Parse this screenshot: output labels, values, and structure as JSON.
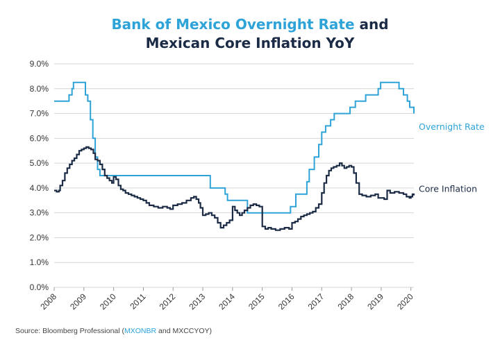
{
  "title": {
    "part_blue": "Bank of Mexico Overnight Rate",
    "part_dark_1": " and",
    "line2": "Mexican Core Inflation YoY"
  },
  "source": {
    "prefix": "Source: Bloomberg Professional (",
    "link": "MXONBR",
    "suffix": " and MXCCYOY)"
  },
  "colors": {
    "overnight": "#2ea3d8",
    "core": "#1b2b45",
    "grid": "#d6d6d6"
  },
  "chart_data": {
    "type": "line",
    "title": "Bank of Mexico Overnight Rate and Mexican Core Inflation YoY",
    "xlabel": "",
    "ylabel": "",
    "xlim": [
      2008,
      2020.1
    ],
    "ylim": [
      0,
      9
    ],
    "x_ticks": [
      "2008",
      "2009",
      "2010",
      "2011",
      "2012",
      "2013",
      "2014",
      "2015",
      "2016",
      "2017",
      "2018",
      "2019",
      "2020"
    ],
    "y_ticks": [
      "0.0%",
      "1.0%",
      "2.0%",
      "3.0%",
      "4.0%",
      "5.0%",
      "6.0%",
      "7.0%",
      "8.0%",
      "9.0%"
    ],
    "grid": true,
    "legend": "inline labels at right end of lines",
    "series": [
      {
        "name": "Overnight Rate",
        "step": true,
        "points": [
          [
            2008.0,
            7.5
          ],
          [
            2008.5,
            7.75
          ],
          [
            2008.6,
            8.0
          ],
          [
            2008.65,
            8.25
          ],
          [
            2009.05,
            7.75
          ],
          [
            2009.13,
            7.5
          ],
          [
            2009.22,
            6.75
          ],
          [
            2009.3,
            6.0
          ],
          [
            2009.38,
            5.25
          ],
          [
            2009.46,
            4.75
          ],
          [
            2009.54,
            4.5
          ],
          [
            2013.25,
            4.0
          ],
          [
            2013.75,
            3.75
          ],
          [
            2013.83,
            3.5
          ],
          [
            2014.5,
            3.0
          ],
          [
            2015.95,
            3.25
          ],
          [
            2016.13,
            3.75
          ],
          [
            2016.5,
            4.25
          ],
          [
            2016.58,
            4.75
          ],
          [
            2016.75,
            5.25
          ],
          [
            2016.9,
            5.75
          ],
          [
            2017.0,
            6.25
          ],
          [
            2017.13,
            6.5
          ],
          [
            2017.3,
            6.75
          ],
          [
            2017.42,
            7.0
          ],
          [
            2017.95,
            7.25
          ],
          [
            2018.13,
            7.5
          ],
          [
            2018.48,
            7.75
          ],
          [
            2018.9,
            8.0
          ],
          [
            2018.98,
            8.25
          ],
          [
            2019.6,
            8.0
          ],
          [
            2019.75,
            7.75
          ],
          [
            2019.88,
            7.5
          ],
          [
            2019.96,
            7.25
          ],
          [
            2020.1,
            7.0
          ]
        ]
      },
      {
        "name": "Core Inflation",
        "step": true,
        "points": [
          [
            2008.0,
            3.9
          ],
          [
            2008.08,
            3.85
          ],
          [
            2008.16,
            3.9
          ],
          [
            2008.2,
            4.1
          ],
          [
            2008.28,
            4.3
          ],
          [
            2008.36,
            4.6
          ],
          [
            2008.44,
            4.8
          ],
          [
            2008.52,
            4.95
          ],
          [
            2008.6,
            5.1
          ],
          [
            2008.68,
            5.2
          ],
          [
            2008.76,
            5.35
          ],
          [
            2008.84,
            5.5
          ],
          [
            2008.92,
            5.55
          ],
          [
            2009.0,
            5.6
          ],
          [
            2009.08,
            5.65
          ],
          [
            2009.16,
            5.6
          ],
          [
            2009.24,
            5.55
          ],
          [
            2009.32,
            5.4
          ],
          [
            2009.38,
            5.15
          ],
          [
            2009.46,
            5.1
          ],
          [
            2009.54,
            4.95
          ],
          [
            2009.62,
            4.75
          ],
          [
            2009.7,
            4.5
          ],
          [
            2009.78,
            4.4
          ],
          [
            2009.86,
            4.3
          ],
          [
            2009.94,
            4.2
          ],
          [
            2010.0,
            4.45
          ],
          [
            2010.08,
            4.35
          ],
          [
            2010.16,
            4.1
          ],
          [
            2010.24,
            3.95
          ],
          [
            2010.32,
            3.9
          ],
          [
            2010.4,
            3.8
          ],
          [
            2010.5,
            3.75
          ],
          [
            2010.6,
            3.7
          ],
          [
            2010.7,
            3.65
          ],
          [
            2010.8,
            3.6
          ],
          [
            2010.9,
            3.55
          ],
          [
            2011.0,
            3.5
          ],
          [
            2011.1,
            3.4
          ],
          [
            2011.2,
            3.3
          ],
          [
            2011.35,
            3.25
          ],
          [
            2011.5,
            3.2
          ],
          [
            2011.65,
            3.25
          ],
          [
            2011.8,
            3.2
          ],
          [
            2011.9,
            3.15
          ],
          [
            2012.0,
            3.3
          ],
          [
            2012.15,
            3.35
          ],
          [
            2012.3,
            3.4
          ],
          [
            2012.45,
            3.5
          ],
          [
            2012.6,
            3.6
          ],
          [
            2012.7,
            3.65
          ],
          [
            2012.78,
            3.55
          ],
          [
            2012.86,
            3.4
          ],
          [
            2012.92,
            3.2
          ],
          [
            2013.0,
            2.9
          ],
          [
            2013.1,
            2.95
          ],
          [
            2013.2,
            3.0
          ],
          [
            2013.3,
            2.9
          ],
          [
            2013.4,
            2.8
          ],
          [
            2013.5,
            2.6
          ],
          [
            2013.6,
            2.4
          ],
          [
            2013.7,
            2.5
          ],
          [
            2013.8,
            2.6
          ],
          [
            2013.9,
            2.7
          ],
          [
            2014.0,
            3.25
          ],
          [
            2014.08,
            3.1
          ],
          [
            2014.16,
            3.0
          ],
          [
            2014.24,
            2.9
          ],
          [
            2014.32,
            3.0
          ],
          [
            2014.4,
            3.1
          ],
          [
            2014.5,
            3.2
          ],
          [
            2014.6,
            3.3
          ],
          [
            2014.7,
            3.35
          ],
          [
            2014.8,
            3.3
          ],
          [
            2014.9,
            3.25
          ],
          [
            2015.0,
            2.45
          ],
          [
            2015.1,
            2.35
          ],
          [
            2015.2,
            2.4
          ],
          [
            2015.3,
            2.35
          ],
          [
            2015.45,
            2.3
          ],
          [
            2015.6,
            2.35
          ],
          [
            2015.75,
            2.4
          ],
          [
            2015.9,
            2.35
          ],
          [
            2016.0,
            2.6
          ],
          [
            2016.1,
            2.65
          ],
          [
            2016.2,
            2.75
          ],
          [
            2016.3,
            2.85
          ],
          [
            2016.4,
            2.9
          ],
          [
            2016.5,
            2.95
          ],
          [
            2016.6,
            3.0
          ],
          [
            2016.7,
            3.05
          ],
          [
            2016.8,
            3.2
          ],
          [
            2016.9,
            3.35
          ],
          [
            2017.0,
            3.8
          ],
          [
            2017.08,
            4.2
          ],
          [
            2017.16,
            4.5
          ],
          [
            2017.24,
            4.7
          ],
          [
            2017.32,
            4.8
          ],
          [
            2017.4,
            4.85
          ],
          [
            2017.5,
            4.9
          ],
          [
            2017.6,
            5.0
          ],
          [
            2017.68,
            4.9
          ],
          [
            2017.76,
            4.8
          ],
          [
            2017.84,
            4.85
          ],
          [
            2017.92,
            4.9
          ],
          [
            2018.0,
            4.85
          ],
          [
            2018.08,
            4.6
          ],
          [
            2018.16,
            4.2
          ],
          [
            2018.26,
            3.75
          ],
          [
            2018.36,
            3.7
          ],
          [
            2018.5,
            3.65
          ],
          [
            2018.65,
            3.7
          ],
          [
            2018.8,
            3.75
          ],
          [
            2018.9,
            3.6
          ],
          [
            2019.0,
            3.6
          ],
          [
            2019.1,
            3.55
          ],
          [
            2019.2,
            3.9
          ],
          [
            2019.3,
            3.8
          ],
          [
            2019.45,
            3.85
          ],
          [
            2019.6,
            3.8
          ],
          [
            2019.75,
            3.75
          ],
          [
            2019.85,
            3.65
          ],
          [
            2019.95,
            3.6
          ],
          [
            2020.0,
            3.65
          ],
          [
            2020.05,
            3.75
          ],
          [
            2020.1,
            3.7
          ]
        ]
      }
    ]
  }
}
